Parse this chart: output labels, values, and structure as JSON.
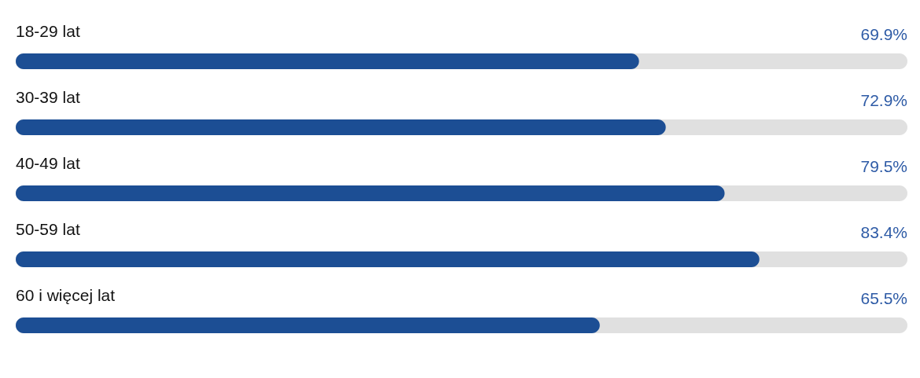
{
  "chart_data": {
    "type": "bar",
    "orientation": "horizontal",
    "categories": [
      "18-29 lat",
      "30-39 lat",
      "40-49 lat",
      "50-59 lat",
      "60 i więcej lat"
    ],
    "values": [
      69.9,
      72.9,
      79.5,
      83.4,
      65.5
    ],
    "value_labels": [
      "69.9%",
      "72.9%",
      "79.5%",
      "83.4%",
      "65.5%"
    ],
    "color": "#1c4e94",
    "xlim": [
      0,
      100
    ],
    "tick_labels": false
  }
}
